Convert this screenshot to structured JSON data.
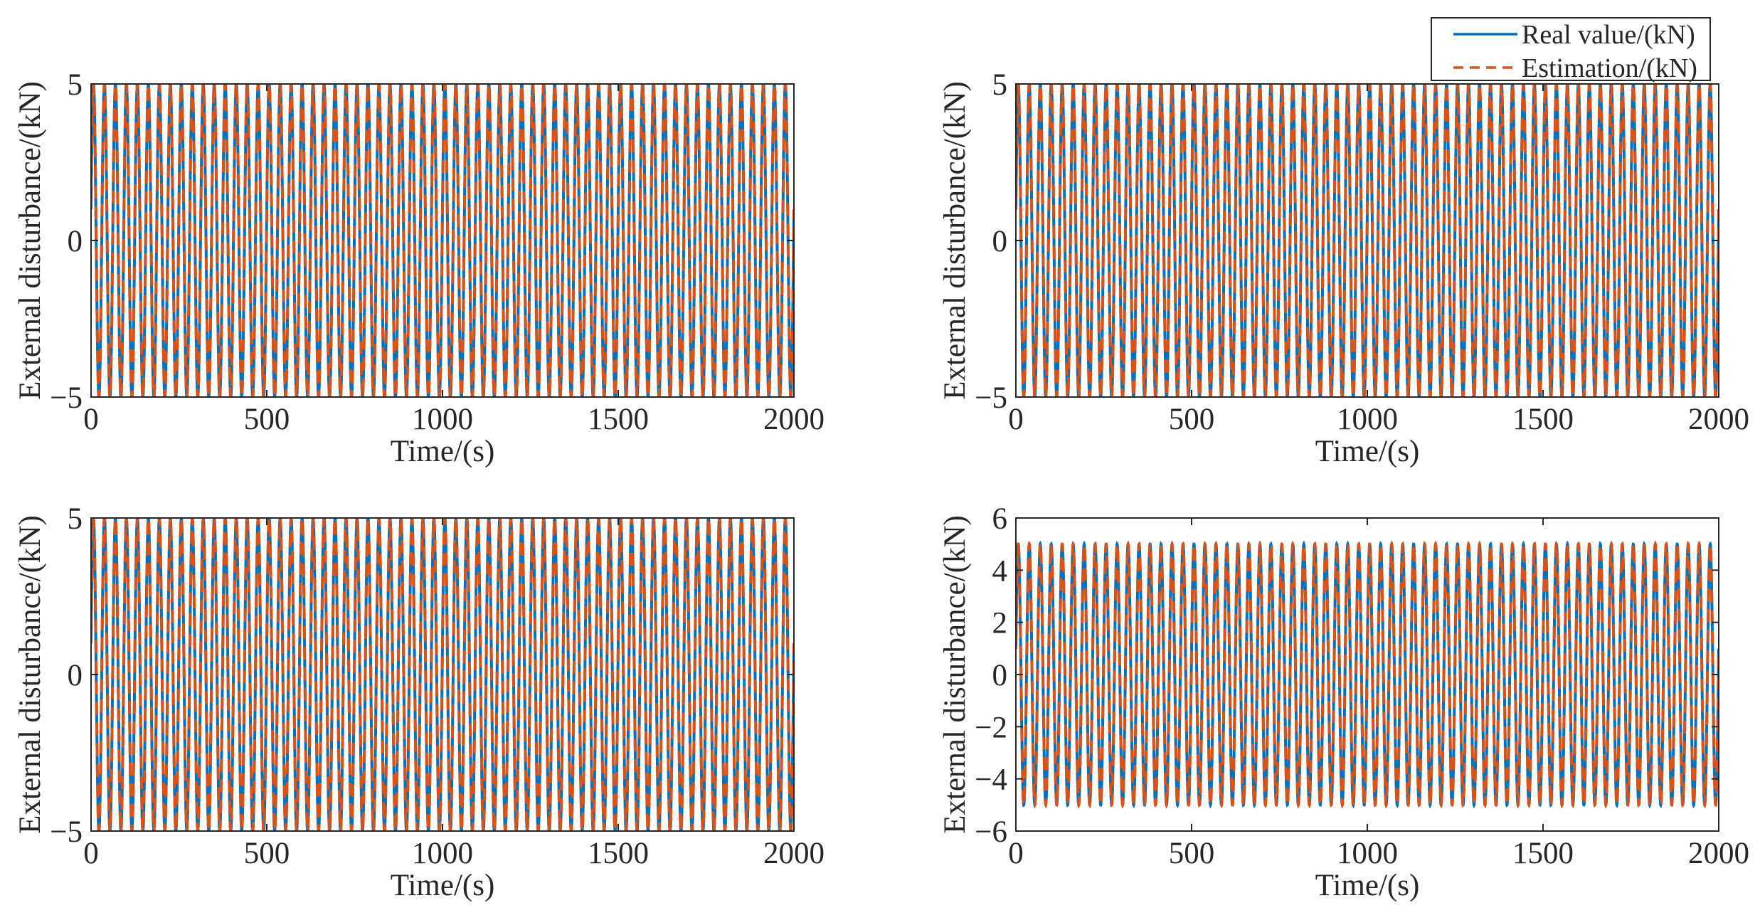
{
  "colors": {
    "real": "#0072BD",
    "estimation": "#D95319",
    "axis": "#262626",
    "background": "#ffffff"
  },
  "legend": {
    "placement": "top-right",
    "entries": [
      {
        "label": "Real value/(kN)",
        "style": "solid"
      },
      {
        "label": "Estimation/(kN)",
        "style": "dashed"
      }
    ]
  },
  "chart_data": [
    {
      "type": "line",
      "xlabel": "Time/(s)",
      "ylabel": "External disturbance/(kN)",
      "xlim": [
        0,
        2000
      ],
      "ylim": [
        -5,
        5
      ],
      "xticks": [
        0,
        500,
        1000,
        1500,
        2000
      ],
      "yticks": [
        -5,
        0,
        5
      ],
      "ytick_labels": [
        "−5",
        "0",
        "5"
      ],
      "grid": false,
      "series": [
        {
          "name": "Real value/(kN)",
          "amplitude": 5,
          "cycles": 64,
          "phase": 0.2,
          "style": "solid"
        },
        {
          "name": "Estimation/(kN)",
          "amplitude": 5,
          "cycles": 64,
          "phase": 0.2,
          "style": "dashed"
        }
      ]
    },
    {
      "type": "line",
      "xlabel": "Time/(s)",
      "ylabel": "External disturbance/(kN)",
      "xlim": [
        0,
        2000
      ],
      "ylim": [
        -5,
        5
      ],
      "xticks": [
        0,
        500,
        1000,
        1500,
        2000
      ],
      "yticks": [
        -5,
        0,
        5
      ],
      "ytick_labels": [
        "−5",
        "0",
        "5"
      ],
      "grid": false,
      "series": [
        {
          "name": "Real value/(kN)",
          "amplitude": 5,
          "cycles": 64,
          "phase": 0.2,
          "style": "solid"
        },
        {
          "name": "Estimation/(kN)",
          "amplitude": 5,
          "cycles": 64,
          "phase": 0.2,
          "style": "dashed"
        }
      ]
    },
    {
      "type": "line",
      "xlabel": "Time/(s)",
      "ylabel": "External disturbance/(kN)",
      "xlim": [
        0,
        2000
      ],
      "ylim": [
        -5,
        5
      ],
      "xticks": [
        0,
        500,
        1000,
        1500,
        2000
      ],
      "yticks": [
        -5,
        0,
        5
      ],
      "ytick_labels": [
        "−5",
        "0",
        "5"
      ],
      "grid": false,
      "series": [
        {
          "name": "Real value/(kN)",
          "amplitude": 5,
          "cycles": 64,
          "phase": 0.2,
          "style": "solid"
        },
        {
          "name": "Estimation/(kN)",
          "amplitude": 5,
          "cycles": 64,
          "phase": 0.2,
          "style": "dashed"
        }
      ]
    },
    {
      "type": "line",
      "xlabel": "Time/(s)",
      "ylabel": "External disturbance/(kN)",
      "xlim": [
        0,
        2000
      ],
      "ylim": [
        -6,
        6
      ],
      "xticks": [
        0,
        500,
        1000,
        1500,
        2000
      ],
      "yticks": [
        -6,
        -4,
        -2,
        0,
        2,
        4,
        6
      ],
      "ytick_labels": [
        "−6",
        "−4",
        "−2",
        "0",
        "2",
        "4",
        "6"
      ],
      "grid": false,
      "series": [
        {
          "name": "Real value/(kN)",
          "amplitude": 5,
          "cycles": 64,
          "phase": 0.2,
          "style": "solid"
        },
        {
          "name": "Estimation/(kN)",
          "amplitude": 5,
          "cycles": 64,
          "phase": 0.2,
          "style": "dashed"
        }
      ]
    }
  ]
}
